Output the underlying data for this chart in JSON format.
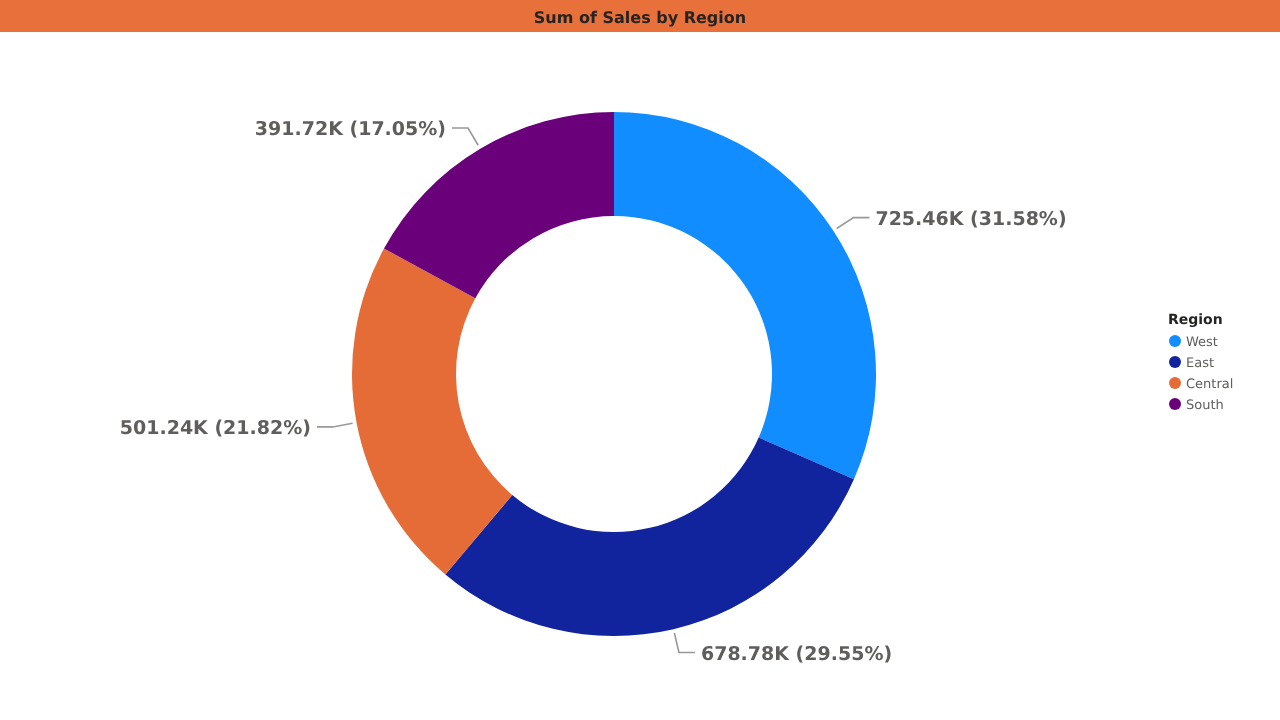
{
  "chart_data": {
    "type": "donut",
    "title": "Sum of Sales by Region",
    "legend_title": "Region",
    "categories": [
      "West",
      "East",
      "Central",
      "South"
    ],
    "values": [
      725460,
      678780,
      501240,
      391720
    ],
    "colors": [
      "#118dff",
      "#12239e",
      "#e66c37",
      "#6b007b"
    ],
    "value_labels": [
      "725.46K (31.58%)",
      "678.78K (29.55%)",
      "501.24K (21.82%)",
      "391.72K (17.05%)"
    ],
    "legend": "right"
  }
}
